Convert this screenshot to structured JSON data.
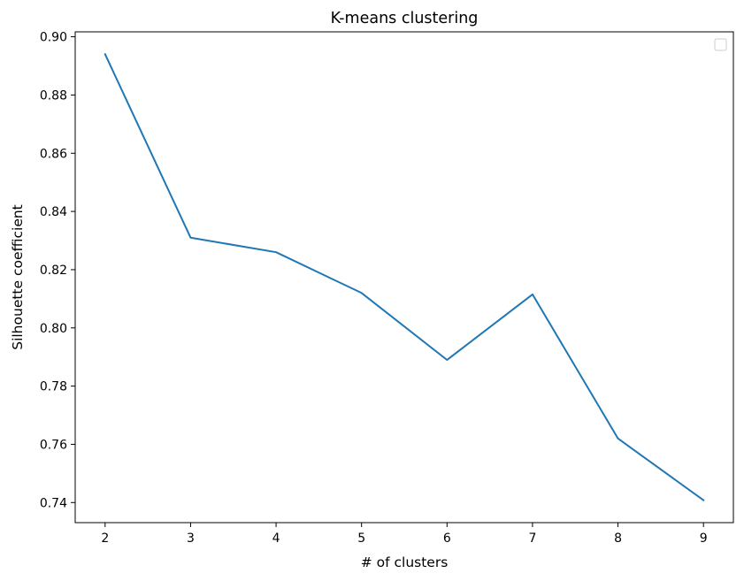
{
  "chart_data": {
    "type": "line",
    "title": "K-means clustering",
    "xlabel": "# of clusters",
    "ylabel": "Silhouette coefficient",
    "x": [
      2,
      3,
      4,
      5,
      6,
      7,
      8,
      9
    ],
    "series": [
      {
        "name": "",
        "color": "#1f77b4",
        "values": [
          0.894,
          0.831,
          0.826,
          0.812,
          0.789,
          0.8115,
          0.762,
          0.7408
        ]
      }
    ],
    "xticks": [
      2,
      3,
      4,
      5,
      6,
      7,
      8,
      9
    ],
    "xtick_labels": [
      "2",
      "3",
      "4",
      "5",
      "6",
      "7",
      "8",
      "9"
    ],
    "yticks": [
      0.74,
      0.76,
      0.78,
      0.8,
      0.82,
      0.84,
      0.86,
      0.88,
      0.9
    ],
    "ytick_labels": [
      "0.74",
      "0.76",
      "0.78",
      "0.80",
      "0.82",
      "0.84",
      "0.86",
      "0.88",
      "0.90"
    ],
    "xlim": [
      1.65,
      9.35
    ],
    "ylim": [
      0.7331,
      0.9017
    ],
    "grid": false,
    "legend": "top-right (empty)"
  }
}
